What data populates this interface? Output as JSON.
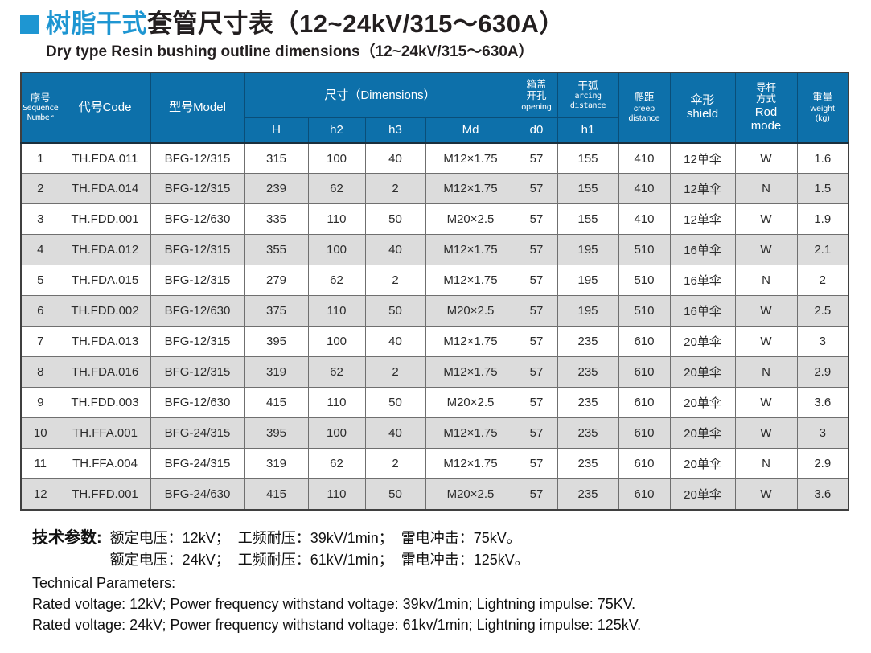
{
  "colors": {
    "accent_blue": "#1e96d2",
    "header_blue": "#0d70aa",
    "alt_row_gray": "#dcdcdc"
  },
  "title": {
    "zh_highlight": "树脂干式",
    "zh_rest": "套管尺寸表（12~24kV/315～630A）",
    "en": "Dry type Resin bushing outline dimensions（12~24kV/315～630A）"
  },
  "table": {
    "headers": {
      "seq_zh": "序号",
      "seq_en1": "Sequence",
      "seq_en2": "Number",
      "code": "代号Code",
      "model": "型号Model",
      "dimensions": "尺寸（Dimensions）",
      "dim_h": "H",
      "dim_h2": "h2",
      "dim_h3": "h3",
      "dim_md": "Md",
      "opening_zh1": "箱盖",
      "opening_zh2": "开孔",
      "opening_en": "opening",
      "opening_sub": "d0",
      "arcing_zh": "干弧",
      "arcing_en1": "arcing",
      "arcing_en2": "distance",
      "arcing_sub": "h1",
      "creep_zh": "爬距",
      "creep_en1": "creep",
      "creep_en2": "distance",
      "shield_zh": "伞形",
      "shield_en": "shield",
      "rod_zh1": "导杆",
      "rod_zh2": "方式",
      "rod_en1": "Rod",
      "rod_en2": "mode",
      "weight_zh": "重量",
      "weight_en": "weight",
      "weight_unit": "(kg)"
    },
    "rows": [
      [
        "1",
        "TH.FDA.011",
        "BFG-12/315",
        "315",
        "100",
        "40",
        "M12×1.75",
        "57",
        "155",
        "410",
        "12单伞",
        "W",
        "1.6"
      ],
      [
        "2",
        "TH.FDA.014",
        "BFG-12/315",
        "239",
        "62",
        "2",
        "M12×1.75",
        "57",
        "155",
        "410",
        "12单伞",
        "N",
        "1.5"
      ],
      [
        "3",
        "TH.FDD.001",
        "BFG-12/630",
        "335",
        "110",
        "50",
        "M20×2.5",
        "57",
        "155",
        "410",
        "12单伞",
        "W",
        "1.9"
      ],
      [
        "4",
        "TH.FDA.012",
        "BFG-12/315",
        "355",
        "100",
        "40",
        "M12×1.75",
        "57",
        "195",
        "510",
        "16单伞",
        "W",
        "2.1"
      ],
      [
        "5",
        "TH.FDA.015",
        "BFG-12/315",
        "279",
        "62",
        "2",
        "M12×1.75",
        "57",
        "195",
        "510",
        "16单伞",
        "N",
        "2"
      ],
      [
        "6",
        "TH.FDD.002",
        "BFG-12/630",
        "375",
        "110",
        "50",
        "M20×2.5",
        "57",
        "195",
        "510",
        "16单伞",
        "W",
        "2.5"
      ],
      [
        "7",
        "TH.FDA.013",
        "BFG-12/315",
        "395",
        "100",
        "40",
        "M12×1.75",
        "57",
        "235",
        "610",
        "20单伞",
        "W",
        "3"
      ],
      [
        "8",
        "TH.FDA.016",
        "BFG-12/315",
        "319",
        "62",
        "2",
        "M12×1.75",
        "57",
        "235",
        "610",
        "20单伞",
        "N",
        "2.9"
      ],
      [
        "9",
        "TH.FDD.003",
        "BFG-12/630",
        "415",
        "110",
        "50",
        "M20×2.5",
        "57",
        "235",
        "610",
        "20单伞",
        "W",
        "3.6"
      ],
      [
        "10",
        "TH.FFA.001",
        "BFG-24/315",
        "395",
        "100",
        "40",
        "M12×1.75",
        "57",
        "235",
        "610",
        "20单伞",
        "W",
        "3"
      ],
      [
        "11",
        "TH.FFA.004",
        "BFG-24/315",
        "319",
        "62",
        "2",
        "M12×1.75",
        "57",
        "235",
        "610",
        "20单伞",
        "N",
        "2.9"
      ],
      [
        "12",
        "TH.FFD.001",
        "BFG-24/630",
        "415",
        "110",
        "50",
        "M20×2.5",
        "57",
        "235",
        "610",
        "20单伞",
        "W",
        "3.6"
      ]
    ]
  },
  "footer": {
    "label": "技术参数:",
    "zh_line1": "额定电压：12kV；  工频耐压：39kV/1min；  雷电冲击：75kV。",
    "zh_line2": "额定电压：24kV；  工频耐压：61kV/1min；  雷电冲击：125kV。",
    "en_title": "Technical Parameters:",
    "en_line1": "Rated voltage: 12kV; Power frequency withstand voltage: 39kv/1min; Lightning impulse: 75KV.",
    "en_line2": "Rated voltage: 24kV; Power frequency withstand voltage: 61kv/1min; Lightning impulse: 125kV."
  }
}
